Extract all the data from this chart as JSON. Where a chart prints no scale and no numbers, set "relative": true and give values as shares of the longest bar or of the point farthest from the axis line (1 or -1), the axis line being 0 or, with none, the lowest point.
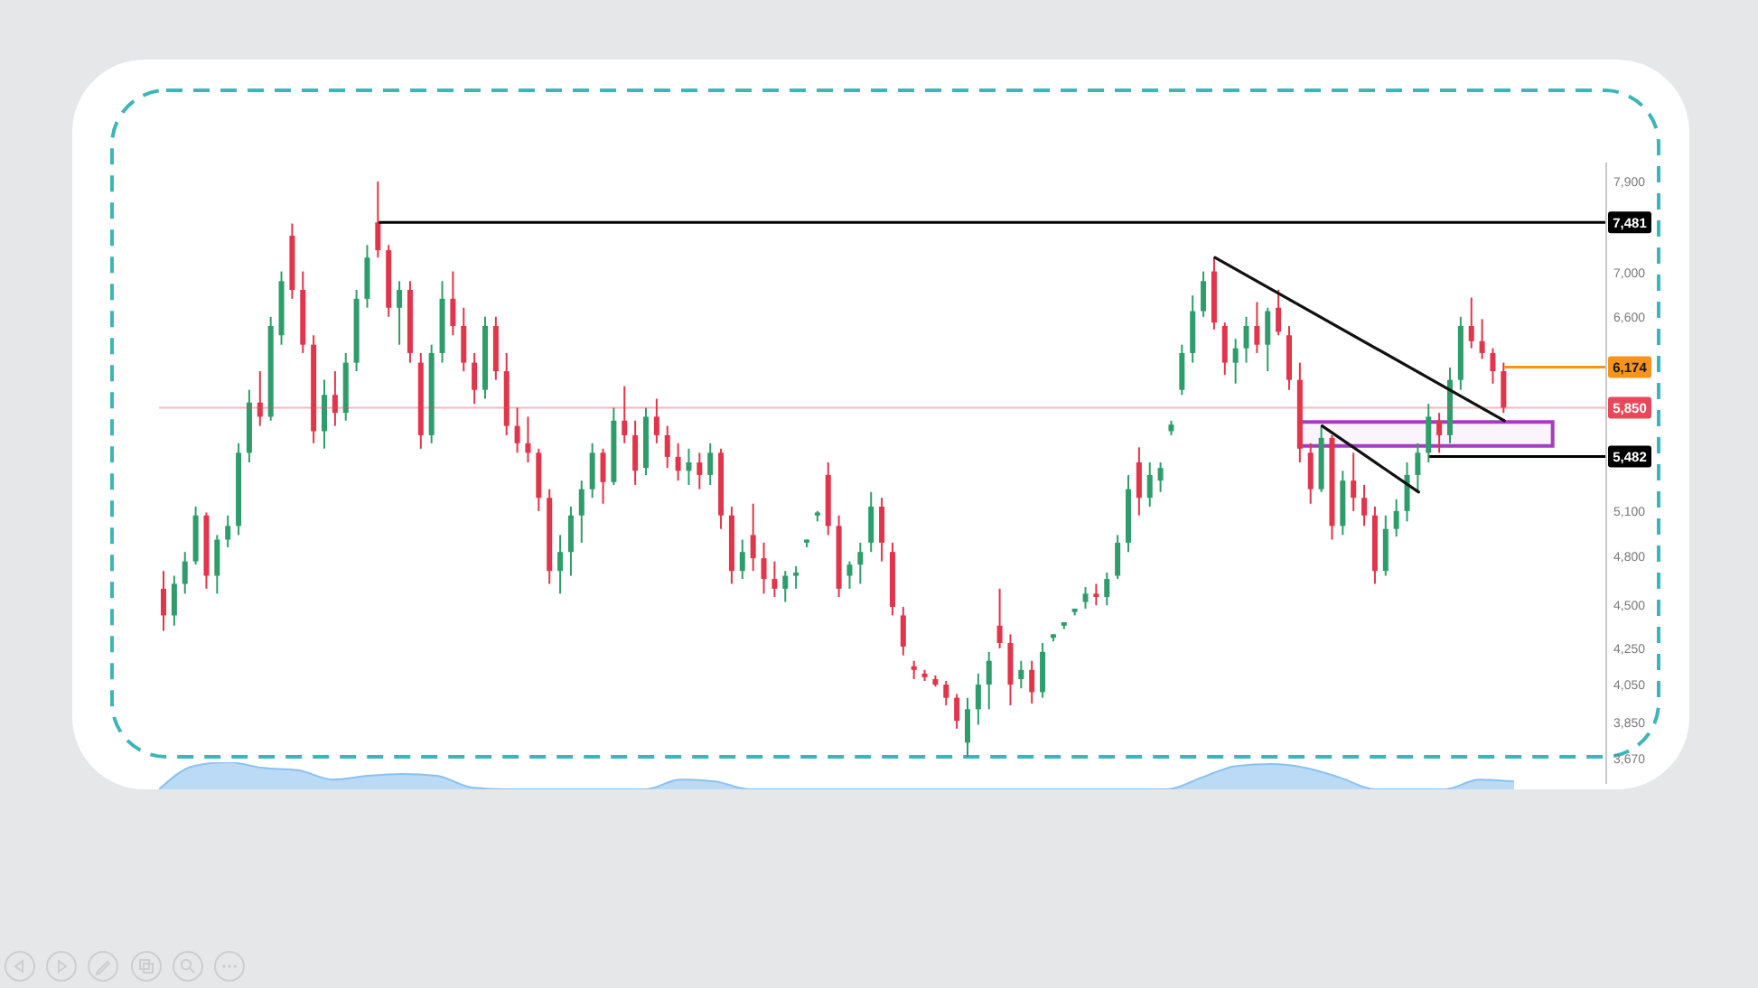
{
  "chart_data": [
    {
      "type": "candlestick",
      "categories": [
        null,
        null,
        null,
        null,
        null,
        null,
        null,
        null,
        null,
        null,
        null,
        null,
        null,
        null,
        null,
        null,
        null,
        null,
        null,
        null,
        null,
        null,
        null,
        null,
        null,
        null,
        null,
        null,
        null,
        null,
        null,
        null,
        null,
        null,
        null,
        null,
        null,
        null,
        null,
        null,
        null,
        null,
        null,
        null,
        null,
        null,
        null,
        null,
        null,
        null,
        null,
        null,
        null,
        null,
        null,
        null,
        null,
        null,
        null,
        null,
        null,
        null,
        null,
        null,
        null,
        null,
        null,
        null,
        null,
        null,
        null,
        null,
        null,
        null,
        null,
        null,
        null,
        null,
        null,
        null,
        null,
        null,
        null,
        null,
        null,
        null,
        null,
        null,
        null,
        null,
        null,
        null,
        null,
        null,
        null,
        null,
        null,
        null,
        null,
        null,
        null,
        null,
        null,
        null,
        null,
        null,
        null,
        null,
        null,
        null,
        null,
        null,
        null,
        null,
        null,
        null,
        null,
        null,
        null,
        null,
        null,
        null,
        null,
        null,
        null,
        null,
        null,
        null,
        null,
        null,
        null,
        null,
        null,
        null,
        null
      ],
      "ohlc": [
        [
          4600,
          4710,
          4350,
          4440
        ],
        [
          4440,
          4680,
          4380,
          4630
        ],
        [
          4630,
          4830,
          4570,
          4770
        ],
        [
          4770,
          5130,
          4750,
          5070
        ],
        [
          5070,
          5090,
          4600,
          4680
        ],
        [
          4680,
          4940,
          4570,
          4910
        ],
        [
          4910,
          5070,
          4860,
          5000
        ],
        [
          5000,
          5580,
          4940,
          5510
        ],
        [
          5510,
          5990,
          5440,
          5890
        ],
        [
          5890,
          6140,
          5710,
          5780
        ],
        [
          5780,
          6600,
          5750,
          6520
        ],
        [
          6440,
          7010,
          6360,
          6920
        ],
        [
          7350,
          7470,
          6760,
          6840
        ],
        [
          6840,
          7010,
          6290,
          6360
        ],
        [
          6360,
          6440,
          5580,
          5670
        ],
        [
          5670,
          6070,
          5540,
          5950
        ],
        [
          5950,
          6140,
          5710,
          5810
        ],
        [
          5810,
          6290,
          5750,
          6210
        ],
        [
          6210,
          6840,
          6140,
          6760
        ],
        [
          6760,
          7260,
          6680,
          7140
        ],
        [
          7481,
          7900,
          7140,
          7210
        ],
        [
          7210,
          7260,
          6600,
          6680
        ],
        [
          6680,
          6920,
          6360,
          6840
        ],
        [
          6840,
          6920,
          6210,
          6290
        ],
        [
          6210,
          6290,
          5540,
          5640
        ],
        [
          5640,
          6360,
          5580,
          6290
        ],
        [
          6290,
          6920,
          6210,
          6760
        ],
        [
          6760,
          7010,
          6440,
          6520
        ],
        [
          6520,
          6680,
          6140,
          6210
        ],
        [
          6210,
          6290,
          5880,
          5990
        ],
        [
          5990,
          6600,
          5920,
          6520
        ],
        [
          6520,
          6600,
          6070,
          6140
        ],
        [
          6140,
          6290,
          5640,
          5710
        ],
        [
          5710,
          5850,
          5510,
          5580
        ],
        [
          5580,
          5780,
          5440,
          5510
        ],
        [
          5510,
          5540,
          5100,
          5190
        ],
        [
          5190,
          5250,
          4630,
          4710
        ],
        [
          4710,
          4940,
          4570,
          4830
        ],
        [
          4830,
          5130,
          4680,
          5070
        ],
        [
          5070,
          5310,
          4890,
          5250
        ],
        [
          5250,
          5580,
          5190,
          5510
        ],
        [
          5510,
          5540,
          5150,
          5300
        ],
        [
          5300,
          5850,
          5280,
          5750
        ],
        [
          5750,
          6020,
          5580,
          5640
        ],
        [
          5640,
          5750,
          5280,
          5380
        ],
        [
          5400,
          5850,
          5350,
          5780
        ],
        [
          5780,
          5920,
          5580,
          5640
        ],
        [
          5640,
          5710,
          5400,
          5480
        ],
        [
          5480,
          5580,
          5310,
          5380
        ],
        [
          5380,
          5540,
          5280,
          5440
        ],
        [
          5440,
          5510,
          5250,
          5350
        ],
        [
          5350,
          5580,
          5280,
          5510
        ],
        [
          5510,
          5540,
          4980,
          5070
        ],
        [
          5070,
          5130,
          4630,
          4710
        ],
        [
          4710,
          4910,
          4660,
          4830
        ],
        [
          4940,
          5150,
          4710,
          4790
        ],
        [
          4790,
          4890,
          4570,
          4660
        ],
        [
          4660,
          4770,
          4550,
          4600
        ],
        [
          4600,
          4710,
          4520,
          4680
        ],
        [
          4680,
          4740,
          4600,
          4700
        ],
        [
          4890,
          4910,
          4860,
          4910
        ],
        [
          5070,
          5100,
          5030,
          5090
        ],
        [
          5350,
          5440,
          4940,
          5000
        ],
        [
          5000,
          5070,
          4550,
          4600
        ],
        [
          4680,
          4770,
          4600,
          4750
        ],
        [
          4750,
          4890,
          4630,
          4830
        ],
        [
          4890,
          5230,
          4830,
          5130
        ],
        [
          5130,
          5190,
          4770,
          4890
        ],
        [
          4830,
          4890,
          4440,
          4490
        ],
        [
          4440,
          4490,
          4210,
          4260
        ],
        [
          4150,
          4180,
          4080,
          4130
        ],
        [
          4110,
          4130,
          4070,
          4090
        ],
        [
          4080,
          4100,
          4040,
          4050
        ],
        [
          4050,
          4070,
          3940,
          3980
        ],
        [
          3980,
          4000,
          3820,
          3860
        ],
        [
          3750,
          3980,
          3680,
          3920
        ],
        [
          3920,
          4110,
          3840,
          4050
        ],
        [
          4050,
          4230,
          3920,
          4180
        ],
        [
          4380,
          4600,
          4250,
          4280
        ],
        [
          4280,
          4330,
          3940,
          4050
        ],
        [
          4080,
          4180,
          4030,
          4130
        ],
        [
          4130,
          4180,
          3950,
          4010
        ],
        [
          4010,
          4280,
          3980,
          4230
        ],
        [
          4310,
          4330,
          4290,
          4330
        ],
        [
          4380,
          4400,
          4360,
          4400
        ],
        [
          4460,
          4480,
          4440,
          4480
        ],
        [
          4520,
          4610,
          4480,
          4570
        ],
        [
          4570,
          4630,
          4500,
          4550
        ],
        [
          4550,
          4700,
          4500,
          4660
        ],
        [
          4680,
          4940,
          4660,
          4890
        ],
        [
          4890,
          5350,
          4830,
          5250
        ],
        [
          5440,
          5550,
          5070,
          5190
        ],
        [
          5190,
          5440,
          5130,
          5350
        ],
        [
          5310,
          5440,
          5230,
          5400
        ],
        [
          5670,
          5750,
          5640,
          5720
        ],
        [
          5990,
          6360,
          5950,
          6290
        ],
        [
          6290,
          6790,
          6210,
          6650
        ],
        [
          6650,
          7010,
          6600,
          6920
        ],
        [
          7010,
          7140,
          6490,
          6550
        ],
        [
          6520,
          6550,
          6110,
          6210
        ],
        [
          6210,
          6410,
          6040,
          6330
        ],
        [
          6330,
          6600,
          6210,
          6520
        ],
        [
          6520,
          6730,
          6290,
          6360
        ],
        [
          6360,
          6680,
          6140,
          6650
        ],
        [
          6680,
          6840,
          6440,
          6470
        ],
        [
          6440,
          6520,
          5990,
          6070
        ],
        [
          6070,
          6210,
          5440,
          5540
        ],
        [
          5510,
          5580,
          5150,
          5250
        ],
        [
          5250,
          5710,
          5230,
          5620
        ],
        [
          5620,
          5640,
          4910,
          5000
        ],
        [
          5000,
          5380,
          4940,
          5310
        ],
        [
          5310,
          5510,
          5100,
          5190
        ],
        [
          5190,
          5280,
          5000,
          5070
        ],
        [
          5070,
          5130,
          4630,
          4710
        ],
        [
          4710,
          5070,
          4680,
          4980
        ],
        [
          4980,
          5180,
          4930,
          5100
        ],
        [
          5100,
          5440,
          5030,
          5350
        ],
        [
          5350,
          5580,
          5230,
          5510
        ],
        [
          5510,
          5880,
          5440,
          5780
        ],
        [
          5750,
          5810,
          5510,
          5640
        ],
        [
          5640,
          6170,
          5580,
          6070
        ],
        [
          6070,
          6600,
          5990,
          6520
        ],
        [
          6520,
          6770,
          6330,
          6390
        ],
        [
          6390,
          6580,
          6240,
          6290
        ],
        [
          6290,
          6330,
          6040,
          6140
        ],
        [
          6140,
          6210,
          5810,
          5850
        ],
        null,
        null,
        null,
        null,
        null,
        null,
        null,
        null,
        null
      ],
      "colors": [
        "#e2344a",
        "#2e9d6b",
        "#2e9d6b",
        "#2e9d6b",
        "#e2344a",
        "#2e9d6b",
        "#2e9d6b",
        "#2e9d6b",
        "#2e9d6b",
        "#e2344a",
        "#2e9d6b",
        "#2e9d6b",
        "#e2344a",
        "#e2344a",
        "#e2344a",
        "#2e9d6b",
        "#e2344a",
        "#2e9d6b",
        "#2e9d6b",
        "#2e9d6b",
        "#e2344a",
        "#e2344a",
        "#2e9d6b",
        "#e2344a",
        "#e2344a",
        "#2e9d6b",
        "#2e9d6b",
        "#e2344a",
        "#e2344a",
        "#e2344a",
        "#2e9d6b",
        "#e2344a",
        "#e2344a",
        "#e2344a",
        "#e2344a",
        "#e2344a",
        "#e2344a",
        "#2e9d6b",
        "#2e9d6b",
        "#2e9d6b",
        "#2e9d6b",
        "#e2344a",
        "#2e9d6b",
        "#e2344a",
        "#e2344a",
        "#2e9d6b",
        "#e2344a",
        "#e2344a",
        "#e2344a",
        "#2e9d6b",
        "#e2344a",
        "#2e9d6b",
        "#e2344a",
        "#e2344a",
        "#2e9d6b",
        "#e2344a",
        "#e2344a",
        "#e2344a",
        "#2e9d6b",
        "#2e9d6b",
        "#2e9d6b",
        "#2e9d6b",
        "#e2344a",
        "#e2344a",
        "#2e9d6b",
        "#2e9d6b",
        "#2e9d6b",
        "#e2344a",
        "#e2344a",
        "#e2344a",
        "#e2344a",
        "#e2344a",
        "#e2344a",
        "#e2344a",
        "#e2344a",
        "#2e9d6b",
        "#2e9d6b",
        "#2e9d6b",
        "#e2344a",
        "#e2344a",
        "#2e9d6b",
        "#e2344a",
        "#2e9d6b",
        "#2e9d6b",
        "#2e9d6b",
        "#2e9d6b",
        "#2e9d6b",
        "#e2344a",
        "#2e9d6b",
        "#2e9d6b",
        "#2e9d6b",
        "#e2344a",
        "#2e9d6b",
        "#2e9d6b",
        "#2e9d6b",
        "#2e9d6b",
        "#2e9d6b",
        "#2e9d6b",
        "#e2344a",
        "#e2344a",
        "#2e9d6b",
        "#2e9d6b",
        "#e2344a",
        "#2e9d6b",
        "#e2344a",
        "#e2344a",
        "#e2344a",
        "#e2344a",
        "#2e9d6b",
        "#e2344a",
        "#2e9d6b",
        "#e2344a",
        "#e2344a",
        "#e2344a",
        "#2e9d6b",
        "#2e9d6b",
        "#2e9d6b",
        "#2e9d6b",
        "#2e9d6b",
        "#e2344a",
        "#2e9d6b",
        "#2e9d6b",
        "#e2344a",
        "#e2344a",
        "#e2344a",
        "#e2344a",
        null,
        null,
        null,
        null,
        null,
        null,
        null,
        null,
        null
      ],
      "series": [
        {
          "type": "line",
          "color": "#111111",
          "values": [
            null,
            null,
            null,
            null,
            null,
            null,
            null,
            null,
            null,
            null,
            null,
            null,
            null,
            null,
            null,
            null,
            null,
            null,
            null,
            null,
            null,
            null,
            null,
            null,
            null,
            null,
            null,
            null,
            null,
            null,
            null,
            null,
            null,
            null,
            null,
            null,
            null,
            null,
            null,
            null,
            null,
            null,
            null,
            null,
            null,
            null,
            null,
            null,
            null,
            null,
            null,
            null,
            null,
            null,
            null,
            null,
            null,
            null,
            null,
            null,
            null,
            null,
            null,
            null,
            null,
            null,
            null,
            null,
            null,
            null,
            null,
            null,
            null,
            null,
            null,
            null,
            null,
            null,
            null,
            null,
            null,
            null,
            null,
            null,
            null,
            null,
            null,
            null,
            null,
            null,
            null,
            null,
            null,
            null,
            null,
            null,
            null,
            null,
            7140,
            null,
            null,
            null,
            null,
            null,
            null,
            null,
            null,
            null,
            null,
            null,
            null,
            null,
            null,
            null,
            null,
            null,
            null,
            null,
            null,
            null,
            null,
            null,
            null,
            null,
            null,
            5750,
            null,
            null,
            null,
            null,
            null,
            null,
            null,
            null,
            null
          ]
        },
        {
          "type": "line",
          "color": "#111111",
          "values": [
            null,
            null,
            null,
            null,
            null,
            null,
            null,
            null,
            null,
            null,
            null,
            null,
            null,
            null,
            null,
            null,
            null,
            null,
            null,
            null,
            null,
            null,
            null,
            null,
            null,
            null,
            null,
            null,
            null,
            null,
            null,
            null,
            null,
            null,
            null,
            null,
            null,
            null,
            null,
            null,
            null,
            null,
            null,
            null,
            null,
            null,
            null,
            null,
            null,
            null,
            null,
            null,
            null,
            null,
            null,
            null,
            null,
            null,
            null,
            null,
            null,
            null,
            null,
            null,
            null,
            null,
            null,
            null,
            null,
            null,
            null,
            null,
            null,
            null,
            null,
            null,
            null,
            null,
            null,
            null,
            null,
            null,
            null,
            null,
            null,
            null,
            null,
            null,
            null,
            null,
            null,
            null,
            null,
            null,
            null,
            null,
            null,
            null,
            null,
            null,
            null,
            null,
            null,
            null,
            null,
            null,
            null,
            null,
            5710,
            null,
            null,
            null,
            null,
            null,
            null,
            null,
            null,
            5230,
            null,
            null,
            null,
            null,
            null,
            null,
            null,
            null,
            null,
            null,
            null,
            null,
            null,
            null,
            null,
            null,
            null
          ]
        }
      ],
      "ylim": [
        3550,
        8100
      ],
      "yticks": [
        {
          "value": 7900,
          "label": "7,900"
        },
        {
          "value": 7000,
          "label": "7,000"
        },
        {
          "value": 6600,
          "label": "6,600"
        },
        {
          "value": 5100,
          "label": "5,100"
        },
        {
          "value": 4800,
          "label": "4,800"
        },
        {
          "value": 4500,
          "label": "4,500"
        },
        {
          "value": 4250,
          "label": "4,250"
        },
        {
          "value": 4050,
          "label": "4,050"
        },
        {
          "value": 3850,
          "label": "3,850"
        },
        {
          "value": 3670,
          "label": "3,670"
        }
      ],
      "log": true,
      "ref_lines": [
        {
          "axis": "y",
          "value": 7481,
          "label": "7,481",
          "color": "#000000"
        },
        {
          "axis": "y",
          "value": 6174,
          "label": "6,174",
          "color": "#f7941d"
        },
        {
          "axis": "y",
          "value": 5850,
          "label": "5,850",
          "color": "#e8495a"
        },
        {
          "axis": "y",
          "value": 5482,
          "label": "5,482",
          "color": "#000000"
        }
      ],
      "bands": [
        {
          "axis": "y",
          "from": 5560,
          "to": 5740,
          "color": "#a43ec0"
        }
      ]
    },
    {
      "type": "area",
      "relative": true,
      "color": "#8cc2ee",
      "categories": [
        null,
        null,
        null,
        null,
        null,
        null,
        null,
        null,
        null,
        null,
        null,
        null,
        null,
        null,
        null,
        null,
        null,
        null,
        null,
        null,
        null,
        null,
        null,
        null,
        null,
        null,
        null,
        null,
        null,
        null,
        null,
        null,
        null,
        null,
        null,
        null,
        null,
        null,
        null,
        null
      ],
      "values": [
        0,
        0.86,
        1,
        0.79,
        0.71,
        0.36,
        0.5,
        0.57,
        0.5,
        0.07,
        0,
        0,
        0,
        0,
        0,
        0.36,
        0.29,
        0,
        0,
        0,
        0,
        0,
        0,
        0,
        0,
        0,
        0,
        0,
        0,
        0,
        0.43,
        0.86,
        0.93,
        0.79,
        0.43,
        0,
        0,
        0,
        0.36,
        0.29
      ]
    }
  ]
}
